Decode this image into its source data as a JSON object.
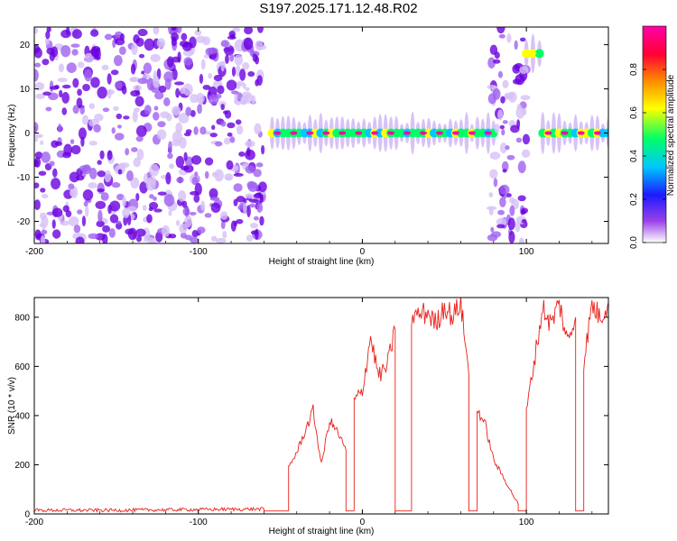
{
  "title": "S197.2025.171.12.48.R02",
  "colors": {
    "snr_line": "#e8201a",
    "colormap": [
      "#ffffff",
      "#7a00e6",
      "#1b1bff",
      "#00c8ff",
      "#00ff66",
      "#ffff00",
      "#ff8800",
      "#ff0033",
      "#ff00aa"
    ]
  },
  "chart_data": [
    {
      "type": "heatmap",
      "xlabel": "Height of straight line (km)",
      "ylabel": "Frequency (Hz)",
      "xlim": [
        -200,
        150
      ],
      "ylim": [
        -25,
        24
      ],
      "xticks": [
        -200,
        -100,
        0,
        100
      ],
      "yticks": [
        -20,
        -10,
        0,
        10,
        20
      ],
      "colorbar": {
        "label": "Normalized spectral amplitude",
        "range": [
          0,
          1
        ],
        "ticks": [
          0.0,
          0.2,
          0.4,
          0.6,
          0.8
        ]
      },
      "features": [
        {
          "name": "broadband noise",
          "x_range": [
            -200,
            -60
          ],
          "amplitude": 0.2
        },
        {
          "name": "signal",
          "x_range": [
            -55,
            80
          ],
          "frequency": 0,
          "amplitude_peak": 0.95
        },
        {
          "name": "broadband noise",
          "x_range": [
            78,
            100
          ],
          "amplitude": 0.2
        },
        {
          "name": "signal",
          "x_range": [
            100,
            108
          ],
          "frequency": 18,
          "amplitude_peak": 0.6
        },
        {
          "name": "signal",
          "x_range": [
            110,
            150
          ],
          "frequency": 0,
          "amplitude_peak": 0.95
        }
      ]
    },
    {
      "type": "line",
      "xlabel": "Height of straight line (km)",
      "ylabel": "SNR (10 * v/v)",
      "xlim": [
        -200,
        150
      ],
      "ylim": [
        0,
        880
      ],
      "xticks": [
        -200,
        -100,
        0,
        100
      ],
      "yticks": [
        0,
        200,
        400,
        600,
        800
      ],
      "segments": [
        {
          "x": [
            -200,
            -150,
            -100,
            -60
          ],
          "y": [
            15,
            15,
            18,
            20
          ]
        },
        {
          "x": [
            -45,
            -40,
            -30,
            -25,
            -20,
            -15,
            -10
          ],
          "y": [
            190,
            250,
            420,
            200,
            380,
            330,
            260
          ]
        },
        {
          "x": [
            -5,
            0,
            5,
            10,
            15,
            20
          ],
          "y": [
            460,
            500,
            720,
            560,
            600,
            750
          ]
        },
        {
          "x": [
            30,
            40,
            45,
            50,
            55,
            60,
            65
          ],
          "y": [
            800,
            820,
            770,
            850,
            800,
            860,
            560
          ]
        },
        {
          "x": [
            70,
            75,
            80,
            85,
            90,
            95
          ],
          "y": [
            430,
            360,
            220,
            160,
            100,
            40
          ]
        },
        {
          "x": [
            100,
            110,
            115,
            120,
            125,
            130
          ],
          "y": [
            420,
            840,
            770,
            860,
            700,
            800
          ]
        },
        {
          "x": [
            135,
            140,
            145,
            150
          ],
          "y": [
            620,
            850,
            800,
            860
          ]
        }
      ]
    }
  ]
}
